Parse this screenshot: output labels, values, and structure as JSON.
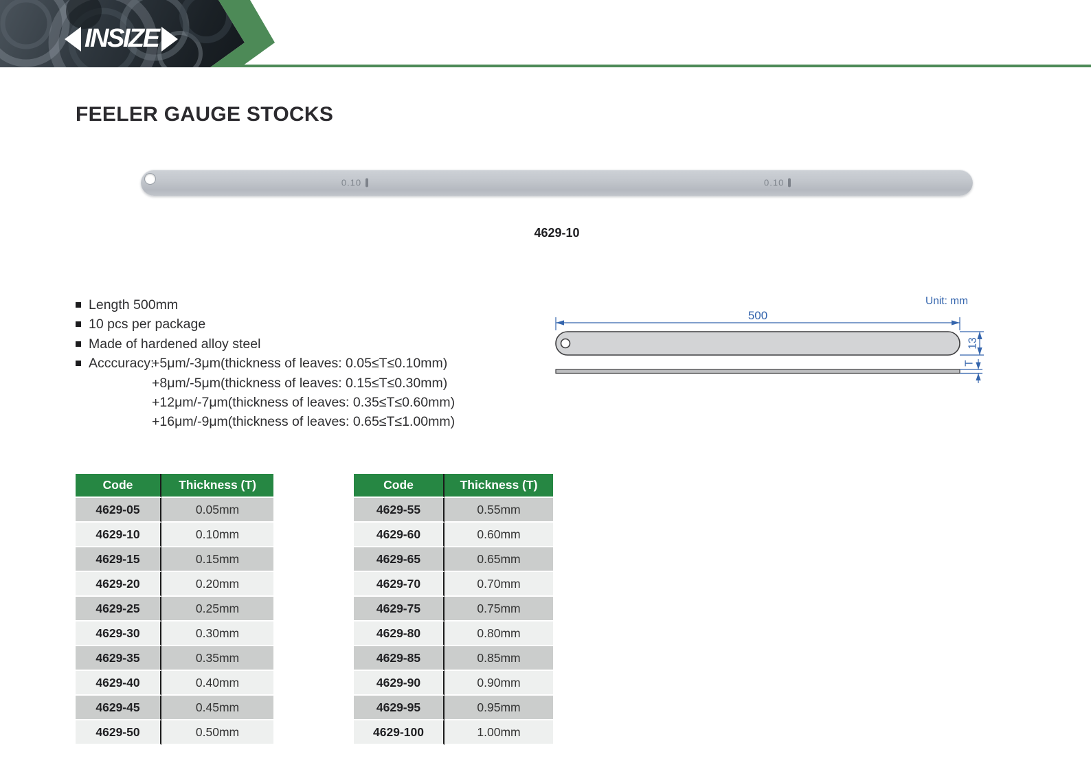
{
  "brand": {
    "logo_text": "INSIZE"
  },
  "page": {
    "title": "FEELER GAUGE STOCKS"
  },
  "product": {
    "caption": "4629-10",
    "marking": "0.10"
  },
  "specs": {
    "items": [
      "Length 500mm",
      "10 pcs per package",
      "Made of hardened alloy steel"
    ],
    "accuracy_label": "Acccuracy:",
    "accuracy_lines": [
      "+5μm/-3μm(thickness of leaves: 0.05≤T≤0.10mm)",
      "+8μm/-5μm(thickness of leaves: 0.15≤T≤0.30mm)",
      "+12μm/-7μm(thickness of leaves: 0.35≤T≤0.60mm)",
      "+16μm/-9μm(thickness of leaves: 0.65≤T≤1.00mm)"
    ]
  },
  "diagram": {
    "unit_label": "Unit: mm",
    "length_label": "500",
    "width_label": "13",
    "thickness_label": "T"
  },
  "tables": [
    {
      "headers": [
        "Code",
        "Thickness (T)"
      ],
      "rows": [
        [
          "4629-05",
          "0.05mm"
        ],
        [
          "4629-10",
          "0.10mm"
        ],
        [
          "4629-15",
          "0.15mm"
        ],
        [
          "4629-20",
          "0.20mm"
        ],
        [
          "4629-25",
          "0.25mm"
        ],
        [
          "4629-30",
          "0.30mm"
        ],
        [
          "4629-35",
          "0.35mm"
        ],
        [
          "4629-40",
          "0.40mm"
        ],
        [
          "4629-45",
          "0.45mm"
        ],
        [
          "4629-50",
          "0.50mm"
        ]
      ]
    },
    {
      "headers": [
        "Code",
        "Thickness (T)"
      ],
      "rows": [
        [
          "4629-55",
          "0.55mm"
        ],
        [
          "4629-60",
          "0.60mm"
        ],
        [
          "4629-65",
          "0.65mm"
        ],
        [
          "4629-70",
          "0.70mm"
        ],
        [
          "4629-75",
          "0.75mm"
        ],
        [
          "4629-80",
          "0.80mm"
        ],
        [
          "4629-85",
          "0.85mm"
        ],
        [
          "4629-90",
          "0.90mm"
        ],
        [
          "4629-95",
          "0.95mm"
        ],
        [
          "4629-100",
          "1.00mm"
        ]
      ]
    }
  ],
  "colors": {
    "brand_green": "#268743",
    "chevron_green": "#4d8a57",
    "diagram_blue": "#3465ad"
  }
}
